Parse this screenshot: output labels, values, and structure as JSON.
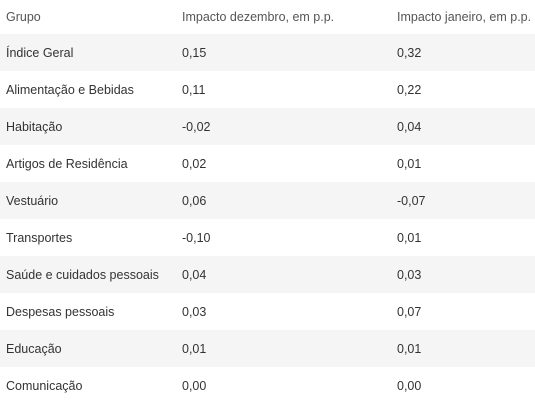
{
  "table": {
    "headers": [
      "Grupo",
      "Impacto dezembro, em p.p.",
      "Impacto janeiro, em p.p."
    ],
    "rows": [
      [
        "Índice Geral",
        "0,15",
        "0,32"
      ],
      [
        "Alimentação e Bebidas",
        "0,11",
        "0,22"
      ],
      [
        "Habitação",
        "-0,02",
        "0,04"
      ],
      [
        "Artigos de Residência",
        "0,02",
        "0,01"
      ],
      [
        "Vestuário",
        "0,06",
        "-0,07"
      ],
      [
        "Transportes",
        "-0,10",
        "0,01"
      ],
      [
        "Saúde e cuidados pessoais",
        "0,04",
        "0,03"
      ],
      [
        "Despesas pessoais",
        "0,03",
        "0,07"
      ],
      [
        "Educação",
        "0,01",
        "0,01"
      ],
      [
        "Comunicação",
        "0,00",
        "0,00"
      ]
    ],
    "colors": {
      "stripe": "#f5f5f5",
      "text": "#333333"
    }
  }
}
